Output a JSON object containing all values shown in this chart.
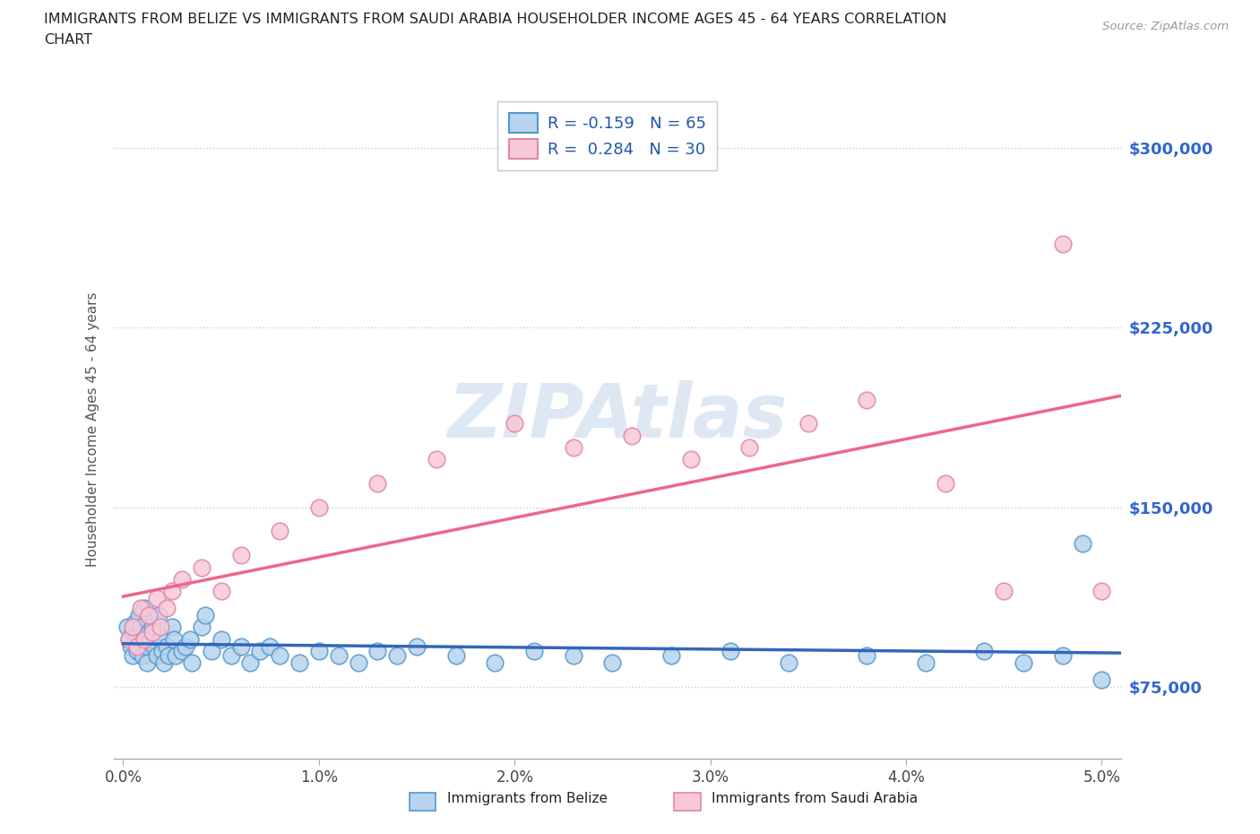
{
  "title_line1": "IMMIGRANTS FROM BELIZE VS IMMIGRANTS FROM SAUDI ARABIA HOUSEHOLDER INCOME AGES 45 - 64 YEARS CORRELATION",
  "title_line2": "CHART",
  "source_text": "Source: ZipAtlas.com",
  "ylabel": "Householder Income Ages 45 - 64 years",
  "xlim": [
    -0.0005,
    0.051
  ],
  "ylim": [
    45000,
    320000
  ],
  "yticks": [
    75000,
    150000,
    225000,
    300000
  ],
  "ytick_labels": [
    "$75,000",
    "$150,000",
    "$225,000",
    "$300,000"
  ],
  "xticks": [
    0.0,
    0.01,
    0.02,
    0.03,
    0.04,
    0.05
  ],
  "xtick_labels": [
    "0.0%",
    "1.0%",
    "2.0%",
    "3.0%",
    "4.0%",
    "5.0%"
  ],
  "belize_color": "#b8d4ee",
  "belize_edge_color": "#5599cc",
  "saudi_color": "#f8c8d8",
  "saudi_edge_color": "#dd88aa",
  "belize_line_color": "#3366bb",
  "saudi_line_color": "#ee6688",
  "belize_R": -0.159,
  "belize_N": 65,
  "saudi_R": 0.284,
  "saudi_N": 30,
  "watermark": "ZIPAtlas",
  "watermark_color": "#dde8f4",
  "background_color": "#ffffff",
  "grid_color": "#cccccc",
  "legend_label_belize": "Immigrants from Belize",
  "legend_label_saudi": "Immigrants from Saudi Arabia",
  "belize_x": [
    0.0002,
    0.0003,
    0.0004,
    0.0005,
    0.0005,
    0.0006,
    0.0007,
    0.0007,
    0.0008,
    0.0009,
    0.001,
    0.001,
    0.0011,
    0.0012,
    0.0012,
    0.0013,
    0.0014,
    0.0015,
    0.0016,
    0.0017,
    0.0018,
    0.0019,
    0.002,
    0.0021,
    0.0022,
    0.0023,
    0.0025,
    0.0026,
    0.0027,
    0.003,
    0.0032,
    0.0034,
    0.0035,
    0.004,
    0.0042,
    0.0045,
    0.005,
    0.0055,
    0.006,
    0.0065,
    0.007,
    0.0075,
    0.008,
    0.009,
    0.01,
    0.011,
    0.012,
    0.013,
    0.014,
    0.015,
    0.017,
    0.019,
    0.021,
    0.023,
    0.025,
    0.028,
    0.031,
    0.034,
    0.038,
    0.041,
    0.044,
    0.046,
    0.048,
    0.049,
    0.05
  ],
  "belize_y": [
    100000,
    95000,
    92000,
    98000,
    88000,
    102000,
    96000,
    90000,
    105000,
    100000,
    95000,
    88000,
    108000,
    92000,
    85000,
    98000,
    95000,
    100000,
    92000,
    88000,
    105000,
    95000,
    90000,
    85000,
    92000,
    88000,
    100000,
    95000,
    88000,
    90000,
    92000,
    95000,
    85000,
    100000,
    105000,
    90000,
    95000,
    88000,
    92000,
    85000,
    90000,
    92000,
    88000,
    85000,
    90000,
    88000,
    85000,
    90000,
    88000,
    92000,
    88000,
    85000,
    90000,
    88000,
    85000,
    88000,
    90000,
    85000,
    88000,
    85000,
    90000,
    85000,
    88000,
    135000,
    78000
  ],
  "saudi_x": [
    0.0003,
    0.0005,
    0.0007,
    0.0009,
    0.0011,
    0.0013,
    0.0015,
    0.0017,
    0.0019,
    0.0022,
    0.0025,
    0.003,
    0.004,
    0.005,
    0.006,
    0.008,
    0.01,
    0.013,
    0.016,
    0.02,
    0.023,
    0.026,
    0.029,
    0.032,
    0.035,
    0.038,
    0.042,
    0.045,
    0.048,
    0.05
  ],
  "saudi_y": [
    95000,
    100000,
    92000,
    108000,
    95000,
    105000,
    98000,
    112000,
    100000,
    108000,
    115000,
    120000,
    125000,
    115000,
    130000,
    140000,
    150000,
    160000,
    170000,
    185000,
    175000,
    180000,
    170000,
    175000,
    185000,
    195000,
    160000,
    115000,
    260000,
    115000
  ]
}
